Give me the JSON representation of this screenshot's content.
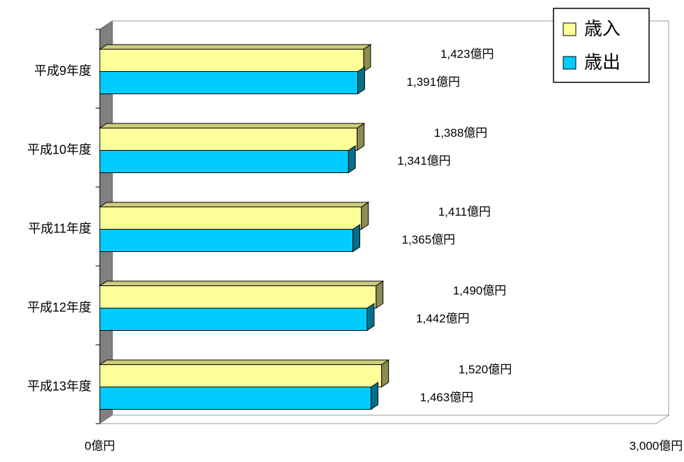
{
  "chart_data": {
    "type": "bar",
    "orientation": "horizontal",
    "style": "3d",
    "categories": [
      "平成9年度",
      "平成10年度",
      "平成11年度",
      "平成12年度",
      "平成13年度"
    ],
    "series": [
      {
        "name": "歳入",
        "values": [
          1423,
          1388,
          1411,
          1490,
          1520
        ],
        "color": "#ffff99"
      },
      {
        "name": "歳出",
        "values": [
          1391,
          1341,
          1365,
          1442,
          1463
        ],
        "color": "#00ccff"
      }
    ],
    "data_labels": {
      "歳入": [
        "1,423億円",
        "1,388億円",
        "1,411億円",
        "1,490億円",
        "1,520億円"
      ],
      "歳出": [
        "1,391億円",
        "1,341億円",
        "1,365億円",
        "1,442億円",
        "1,463億円"
      ]
    },
    "xlim": [
      0,
      3000
    ],
    "x_tick_labels": [
      "0億円",
      "3,000億円"
    ],
    "legend_position": "top-right",
    "grid": false,
    "colors": {
      "wall": "#808080",
      "plot_border": "#999999"
    }
  }
}
